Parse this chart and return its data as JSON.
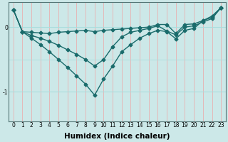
{
  "xlabel": "Humidex (Indice chaleur)",
  "bg_color": "#cce8e8",
  "line_color": "#1a6b6b",
  "grid_color_v": "#e8b0b0",
  "grid_color_h": "#aadddd",
  "xticks": [
    0,
    1,
    2,
    3,
    4,
    5,
    6,
    7,
    8,
    9,
    10,
    11,
    12,
    13,
    14,
    15,
    16,
    17,
    18,
    19,
    20,
    21,
    22,
    23
  ],
  "yticks": [
    0,
    -1
  ],
  "xlim": [
    -0.5,
    23.5
  ],
  "ylim": [
    -1.45,
    0.38
  ],
  "series": [
    [
      0.27,
      -0.07,
      -0.17,
      -0.27,
      -0.38,
      -0.5,
      -0.62,
      -0.75,
      -0.88,
      -1.05,
      -0.8,
      -0.6,
      -0.38,
      -0.27,
      -0.17,
      -0.1,
      -0.05,
      -0.07,
      -0.18,
      -0.05,
      -0.02,
      0.1,
      0.17,
      0.3
    ],
    [
      0.27,
      -0.07,
      -0.13,
      -0.17,
      -0.22,
      -0.28,
      -0.35,
      -0.42,
      -0.5,
      -0.6,
      -0.5,
      -0.3,
      -0.15,
      -0.08,
      -0.05,
      -0.02,
      0.02,
      -0.06,
      -0.12,
      0.0,
      0.02,
      0.08,
      0.13,
      0.3
    ],
    [
      0.27,
      -0.07,
      -0.08,
      -0.09,
      -0.1,
      -0.08,
      -0.07,
      -0.06,
      -0.05,
      -0.07,
      -0.05,
      -0.04,
      -0.03,
      -0.02,
      -0.01,
      0.0,
      0.04,
      0.04,
      -0.1,
      0.04,
      0.05,
      0.1,
      0.15,
      0.3
    ]
  ],
  "marker": "D",
  "markersize": 2.5,
  "linewidth": 1.0,
  "xlabel_fontsize": 7.5,
  "tick_fontsize": 5.5
}
